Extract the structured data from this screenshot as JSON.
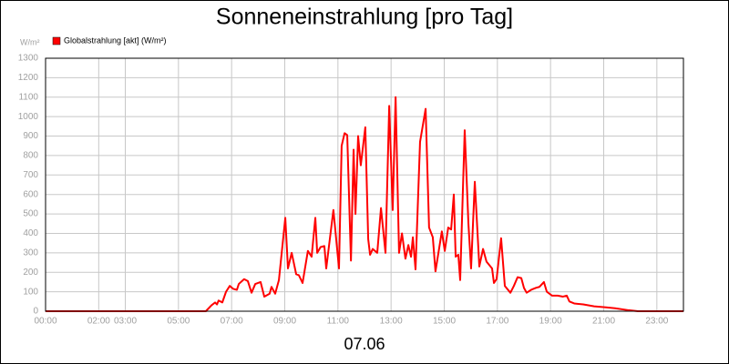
{
  "chart_data": {
    "type": "line",
    "title": "Sonneneinstrahlung [pro Tag]",
    "ylabel": "W/m²",
    "xlabel": "07.06",
    "xlim": [
      0,
      24
    ],
    "xticks": [
      {
        "value": 0,
        "label": "00:00"
      },
      {
        "value": 2,
        "label": "02:00"
      },
      {
        "value": 3,
        "label": "03:00"
      },
      {
        "value": 5,
        "label": "05:00"
      },
      {
        "value": 7,
        "label": "07:00"
      },
      {
        "value": 9,
        "label": "09:00"
      },
      {
        "value": 11,
        "label": "11:00"
      },
      {
        "value": 13,
        "label": "13:00"
      },
      {
        "value": 15,
        "label": "15:00"
      },
      {
        "value": 17,
        "label": "17:00"
      },
      {
        "value": 19,
        "label": "19:00"
      },
      {
        "value": 21,
        "label": "21:00"
      },
      {
        "value": 23,
        "label": "23:00"
      }
    ],
    "ylim": [
      0,
      1300
    ],
    "yticks": [
      0,
      100,
      200,
      300,
      400,
      500,
      600,
      700,
      800,
      900,
      1000,
      1100,
      1200,
      1300
    ],
    "grid": true,
    "legend": "top-left",
    "x": [
      0,
      5.5,
      6.03,
      6.24,
      6.38,
      6.45,
      6.51,
      6.65,
      6.79,
      6.93,
      7.06,
      7.2,
      7.27,
      7.47,
      7.61,
      7.75,
      7.89,
      8.09,
      8.23,
      8.43,
      8.5,
      8.64,
      8.78,
      9.02,
      9.12,
      9.26,
      9.43,
      9.53,
      9.67,
      9.87,
      10.01,
      10.15,
      10.22,
      10.35,
      10.49,
      10.56,
      10.83,
      10.9,
      11.04,
      11.14,
      11.25,
      11.35,
      11.49,
      11.59,
      11.66,
      11.76,
      11.86,
      12.03,
      12.14,
      12.21,
      12.31,
      12.48,
      12.62,
      12.79,
      12.93,
      13.06,
      13.17,
      13.3,
      13.41,
      13.54,
      13.65,
      13.75,
      13.82,
      13.92,
      14.09,
      14.3,
      14.43,
      14.57,
      14.67,
      14.91,
      15.02,
      15.15,
      15.26,
      15.36,
      15.43,
      15.53,
      15.6,
      15.77,
      15.91,
      16.01,
      16.15,
      16.32,
      16.46,
      16.59,
      16.8,
      16.87,
      16.97,
      17.14,
      17.28,
      17.49,
      17.62,
      17.76,
      17.9,
      18.0,
      18.1,
      18.27,
      18.45,
      18.58,
      18.75,
      18.86,
      19.06,
      19.27,
      19.47,
      19.61,
      19.71,
      19.89,
      20.23,
      20.64,
      21.09,
      21.43,
      21.94,
      22.29,
      24
    ],
    "series": [
      {
        "name": "Globalstrahlung [akt] (W/m²)",
        "color": "#ff0000",
        "values": [
          0,
          0,
          0,
          30,
          45,
          35,
          55,
          45,
          100,
          130,
          115,
          110,
          140,
          165,
          155,
          95,
          140,
          150,
          75,
          90,
          125,
          90,
          160,
          480,
          220,
          300,
          190,
          185,
          145,
          310,
          280,
          480,
          300,
          330,
          335,
          220,
          520,
          420,
          220,
          850,
          915,
          905,
          260,
          830,
          500,
          900,
          750,
          945,
          370,
          290,
          320,
          300,
          530,
          300,
          1055,
          520,
          1100,
          300,
          400,
          270,
          340,
          280,
          380,
          215,
          870,
          1040,
          430,
          380,
          205,
          410,
          310,
          430,
          420,
          600,
          280,
          290,
          160,
          930,
          450,
          220,
          665,
          230,
          320,
          255,
          220,
          145,
          165,
          375,
          130,
          95,
          130,
          175,
          170,
          120,
          95,
          110,
          120,
          125,
          150,
          100,
          80,
          80,
          75,
          80,
          50,
          40,
          35,
          25,
          20,
          15,
          5,
          0,
          0
        ]
      }
    ]
  }
}
